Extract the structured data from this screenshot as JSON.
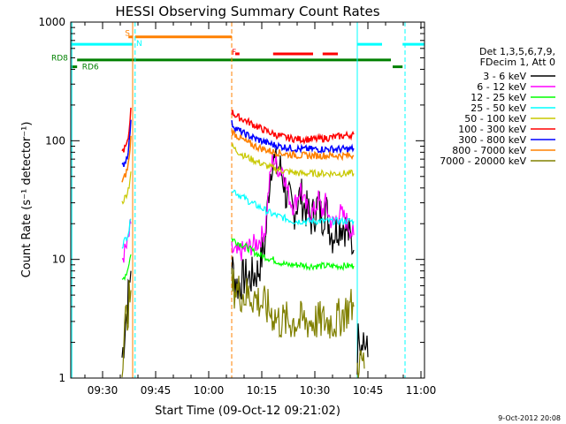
{
  "chart_data": {
    "type": "line",
    "title": "HESSI Observing Summary Count Rates",
    "xlabel": "Start Time (09-Oct-12 09:21:02)",
    "ylabel": "Count Rate (s⁻¹ detector⁻¹)",
    "yscale": "log",
    "ylim": [
      1,
      1000
    ],
    "xlim_minutes": [
      21.0,
      121.0
    ],
    "x_tick_labels": [
      "09:30",
      "09:45",
      "10:00",
      "10:15",
      "10:30",
      "10:45",
      "11:00"
    ],
    "x_tick_minutes": [
      30,
      45,
      60,
      75,
      90,
      105,
      120
    ],
    "y_tick_labels": [
      "1",
      "10",
      "100",
      "1000"
    ],
    "y_tick_values": [
      1,
      10,
      100,
      1000
    ],
    "timestamp": "9-Oct-2012 20:08",
    "legend": {
      "header": [
        "Det 1,3,5,6,7,9,",
        "FDecim 1, Att 0"
      ],
      "placement": "right",
      "entries": [
        {
          "label": "3 - 6 keV",
          "color": "#000000"
        },
        {
          "label": "6 - 12 keV",
          "color": "#ff00ff"
        },
        {
          "label": "12 - 25 keV",
          "color": "#00ff00"
        },
        {
          "label": "25 - 50 keV",
          "color": "#00ffff"
        },
        {
          "label": "50 - 100 keV",
          "color": "#c8c800"
        },
        {
          "label": "100 - 300 keV",
          "color": "#ff0000"
        },
        {
          "label": "300 - 800 keV",
          "color": "#0000ff"
        },
        {
          "label": "800 - 7000 keV",
          "color": "#ff8000"
        },
        {
          "label": "7000 - 20000 keV",
          "color": "#808000"
        }
      ]
    },
    "flags": [
      {
        "label": "S",
        "color": "#ff8000",
        "segments": [
          [
            37.3,
            38.5
          ],
          [
            39.2,
            66.5
          ]
        ],
        "level": 750
      },
      {
        "label": "N",
        "color": "#00ffff",
        "segments": [
          [
            21.0,
            38.5
          ],
          [
            102.0,
            109.0
          ],
          [
            114.8,
            121.0
          ]
        ],
        "level": 650
      },
      {
        "label": "F",
        "color": "#ff0000",
        "segments": [
          [
            67.5,
            68.7
          ],
          [
            78.2,
            89.5
          ],
          [
            92.2,
            96.5
          ]
        ],
        "level": 540
      },
      {
        "label": "RD8",
        "color": "#008000",
        "segments": [
          [
            22.8,
            111.5
          ]
        ],
        "level": 480
      },
      {
        "label": "RD6",
        "color": "#008000",
        "segments": [
          [
            21.0,
            22.8
          ],
          [
            112.0,
            114.8
          ]
        ],
        "level": 420
      }
    ],
    "flag_labels": [
      {
        "text": "S",
        "x": 36.3,
        "y": 810,
        "color": "#ff8000"
      },
      {
        "text": "N",
        "x": 39.5,
        "y": 660,
        "color": "#00ffff"
      },
      {
        "text": "F",
        "x": 66.5,
        "y": 560,
        "color": "#ff0000"
      },
      {
        "text": "RD8",
        "x": 15.5,
        "y": 500,
        "color": "#008000"
      },
      {
        "text": "RD6",
        "x": 24.2,
        "y": 420,
        "color": "#008000"
      }
    ],
    "vlines": [
      {
        "x": 21.3,
        "color": "#00ffff",
        "style": "solid"
      },
      {
        "x": 38.5,
        "color": "#ff8000",
        "style": "solid"
      },
      {
        "x": 39.2,
        "color": "#00ffff",
        "style": "dashed"
      },
      {
        "x": 66.5,
        "color": "#ff8000",
        "style": "dashed"
      },
      {
        "x": 102.0,
        "color": "#00ffff",
        "style": "solid"
      },
      {
        "x": 115.5,
        "color": "#00ffff",
        "style": "dashed"
      }
    ],
    "series": [
      {
        "name": "3 - 6 keV",
        "color": "#000000",
        "segments": [
          {
            "x": [
              35.5,
              36.0,
              36.5,
              37.0,
              37.5,
              38.0
            ],
            "y": [
              1.5,
              2.0,
              3.0,
              4.0,
              6.0,
              8.0
            ]
          },
          {
            "x": [
              66.5,
              68,
              70,
              72,
              74,
              76,
              77,
              78,
              79,
              80,
              81,
              82,
              83,
              84,
              85,
              86,
              87,
              88,
              89,
              90,
              91,
              92,
              93,
              94,
              95,
              96,
              97,
              98,
              99,
              100,
              101
            ],
            "y": [
              9,
              6,
              7,
              7,
              8,
              14,
              40,
              75,
              60,
              60,
              50,
              33,
              30,
              25,
              30,
              35,
              28,
              25,
              22,
              25,
              30,
              22,
              28,
              20,
              16,
              18,
              20,
              20,
              18,
              15,
              12
            ]
          },
          {
            "x": [
              102,
              102.5,
              103,
              103.5,
              104,
              104.5,
              105
            ],
            "y": [
              1.5,
              3.0,
              2.0,
              2.5,
              2.0,
              1.8,
              1.5
            ]
          }
        ]
      },
      {
        "name": "6 - 12 keV",
        "color": "#ff00ff",
        "segments": [
          {
            "x": [
              35.5,
              36.0,
              36.5,
              37.0,
              37.5,
              38.0
            ],
            "y": [
              10,
              11,
              12,
              13,
              16,
              20
            ]
          },
          {
            "x": [
              66.5,
              68,
              70,
              72,
              74,
              76,
              77,
              78,
              79,
              80,
              81,
              82,
              83,
              84,
              85,
              86,
              87,
              88,
              89,
              90,
              91,
              92,
              93,
              94,
              95,
              96,
              97,
              98,
              99,
              100,
              101
            ],
            "y": [
              12,
              11,
              12,
              13,
              14,
              18,
              40,
              70,
              65,
              55,
              60,
              40,
              32,
              28,
              33,
              40,
              30,
              26,
              24,
              26,
              32,
              25,
              30,
              23,
              20,
              22,
              25,
              23,
              21,
              18,
              16
            ]
          }
        ]
      },
      {
        "name": "12 - 25 keV",
        "color": "#00ff00",
        "segments": [
          {
            "x": [
              35.5,
              36.0,
              36.5,
              37.0,
              37.5,
              38.0
            ],
            "y": [
              6.5,
              7.0,
              7.5,
              8.0,
              9.5,
              11
            ]
          },
          {
            "x": [
              66.5,
              68,
              70,
              72,
              74,
              76,
              78,
              80,
              82,
              84,
              86,
              88,
              90,
              92,
              94,
              96,
              98,
              100,
              101
            ],
            "y": [
              15,
              14,
              13,
              12,
              11,
              10.5,
              10,
              9.5,
              9.0,
              9.0,
              9.0,
              8.8,
              8.8,
              8.8,
              8.8,
              8.8,
              8.8,
              8.8,
              8.8
            ]
          }
        ]
      },
      {
        "name": "25 - 50 keV",
        "color": "#00ffff",
        "segments": [
          {
            "x": [
              35.5,
              36.0,
              36.5,
              37.0,
              37.5,
              38.0
            ],
            "y": [
              13,
              14,
              15,
              16,
              18,
              22
            ]
          },
          {
            "x": [
              66.5,
              68,
              70,
              72,
              74,
              76,
              78,
              80,
              82,
              84,
              86,
              88,
              90,
              92,
              94,
              96,
              98,
              100,
              101
            ],
            "y": [
              40,
              36,
              33,
              30,
              28,
              26,
              24,
              23,
              22,
              21,
              21,
              21,
              21,
              21,
              21,
              21,
              21,
              21,
              21
            ]
          }
        ]
      },
      {
        "name": "50 - 100 keV",
        "color": "#c8c800",
        "segments": [
          {
            "x": [
              35.5,
              36.0,
              36.5,
              37.0,
              37.5,
              38.0
            ],
            "y": [
              30,
              32,
              34,
              37,
              42,
              55
            ]
          },
          {
            "x": [
              66.5,
              68,
              70,
              72,
              74,
              76,
              78,
              80,
              82,
              84,
              86,
              88,
              90,
              92,
              94,
              96,
              98,
              100,
              101
            ],
            "y": [
              90,
              82,
              75,
              70,
              66,
              62,
              59,
              57,
              55,
              54,
              53,
              53,
              53,
              53,
              53,
              53,
              53,
              53,
              53
            ]
          }
        ]
      },
      {
        "name": "100 - 300 keV",
        "color": "#ff0000",
        "segments": [
          {
            "x": [
              35.5,
              36.0,
              36.5,
              37.0,
              37.5,
              38.0
            ],
            "y": [
              80,
              85,
              88,
              95,
              120,
              190
            ]
          },
          {
            "x": [
              66.5,
              68,
              70,
              72,
              74,
              76,
              78,
              80,
              82,
              84,
              86,
              88,
              90,
              92,
              94,
              96,
              98,
              100,
              101
            ],
            "y": [
              175,
              160,
              150,
              140,
              130,
              122,
              115,
              110,
              106,
              104,
              103,
              103,
              103,
              104,
              106,
              108,
              110,
              112,
              113
            ]
          }
        ]
      },
      {
        "name": "300 - 800 keV",
        "color": "#0000ff",
        "segments": [
          {
            "x": [
              35.5,
              36.0,
              36.5,
              37.0,
              37.5,
              38.0
            ],
            "y": [
              60,
              64,
              68,
              75,
              95,
              150
            ]
          },
          {
            "x": [
              66.5,
              68,
              70,
              72,
              74,
              76,
              78,
              80,
              82,
              84,
              86,
              88,
              90,
              92,
              94,
              96,
              98,
              100,
              101
            ],
            "y": [
              140,
              125,
              115,
              108,
              102,
              97,
              93,
              90,
              88,
              86,
              85,
              85,
              85,
              85,
              85,
              85,
              85,
              85,
              86
            ]
          }
        ]
      },
      {
        "name": "800 - 7000 keV",
        "color": "#ff8000",
        "segments": [
          {
            "x": [
              35.5,
              36.0,
              36.5,
              37.0,
              37.5,
              38.0
            ],
            "y": [
              45,
              48,
              52,
              58,
              70,
              110
            ]
          },
          {
            "x": [
              66.5,
              68,
              70,
              72,
              74,
              76,
              78,
              80,
              82,
              84,
              86,
              88,
              90,
              92,
              94,
              96,
              98,
              100,
              101
            ],
            "y": [
              120,
              110,
              100,
              93,
              88,
              84,
              81,
              79,
              77,
              76,
              75,
              75,
              75,
              75,
              75,
              75,
              75,
              75,
              75
            ]
          }
        ]
      },
      {
        "name": "7000 - 20000 keV",
        "color": "#808000",
        "segments": [
          {
            "x": [
              35.5,
              36.0,
              36.5,
              37.0,
              37.5,
              38.0
            ],
            "y": [
              1.5,
              2.0,
              3.0,
              3.5,
              4.5,
              5.5
            ]
          },
          {
            "x": [
              66.5,
              68,
              70,
              72,
              74,
              76,
              78,
              80,
              82,
              84,
              86,
              88,
              90,
              92,
              94,
              96,
              98,
              100,
              101
            ],
            "y": [
              6.0,
              5.5,
              5.0,
              5.0,
              4.5,
              4.0,
              3.5,
              3.0,
              3.0,
              3.0,
              3.0,
              3.0,
              3.0,
              3.0,
              3.0,
              3.0,
              3.5,
              4.0,
              4.0
            ]
          },
          {
            "x": [
              102,
              102.5,
              103,
              103.5,
              104
            ],
            "y": [
              1.2,
              1.5,
              1.3,
              1.4,
              1.2
            ]
          }
        ]
      }
    ]
  }
}
